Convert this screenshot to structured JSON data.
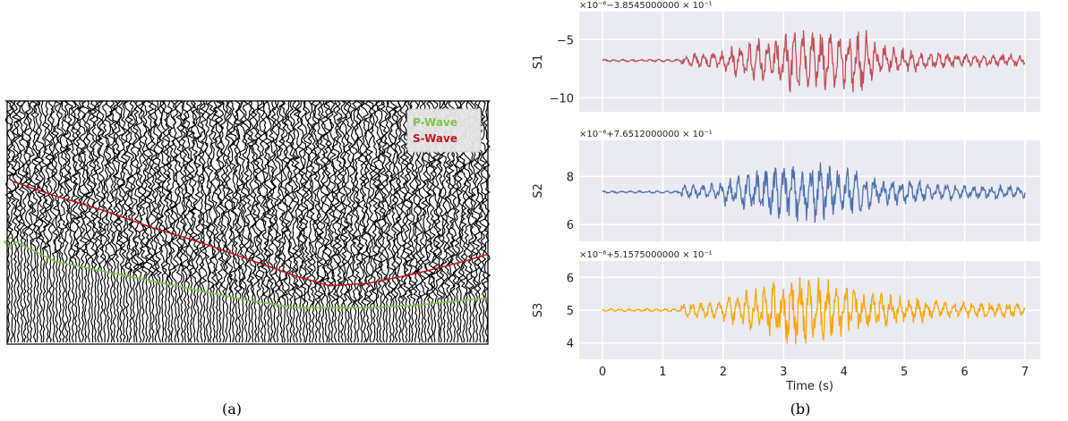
{
  "figure": {
    "caption_a": "(a)",
    "caption_b": "(b)"
  },
  "chart_data": [
    {
      "type": "seismic-gather",
      "title": "",
      "legend": {
        "position": "top-right",
        "entries": [
          "P-Wave",
          "S-Wave"
        ]
      },
      "series": [
        {
          "name": "P-Wave",
          "color": "#7cc44a",
          "trace_pos": [
            0,
            0.02,
            0.1,
            0.2,
            0.3,
            0.4,
            0.5,
            0.6,
            0.67,
            0.75,
            0.85,
            0.95,
            1.0
          ],
          "time_pos": [
            0.6,
            0.58,
            0.66,
            0.7,
            0.74,
            0.78,
            0.82,
            0.85,
            0.85,
            0.85,
            0.84,
            0.82,
            0.81
          ]
        },
        {
          "name": "S-Wave",
          "color": "#c0141c",
          "trace_pos": [
            0.01,
            0.1,
            0.2,
            0.3,
            0.4,
            0.5,
            0.6,
            0.67,
            0.75,
            0.85,
            0.95,
            1.0
          ],
          "time_pos": [
            0.33,
            0.39,
            0.45,
            0.52,
            0.58,
            0.65,
            0.72,
            0.76,
            0.75,
            0.71,
            0.66,
            0.63
          ]
        }
      ]
    },
    {
      "type": "line",
      "xlabel": "Time (s)",
      "xlim": [
        0,
        7
      ],
      "xticks": [
        "0",
        "1",
        "2",
        "3",
        "4",
        "5",
        "6",
        "7"
      ],
      "grid": true,
      "series": [
        {
          "name": "",
          "ylabel": "S1",
          "color": "#c44e52",
          "offset_label": "×10⁻⁶−3.8545000000 × 10⁻¹",
          "ylim": [
            -11.2,
            -2.6
          ],
          "yticks": [
            -5,
            -10
          ],
          "ytick_labels": [
            "−5",
            "−10"
          ],
          "baseline": -6.8,
          "amp": 2.8
        },
        {
          "name": "",
          "ylabel": "S2",
          "color": "#4c72b0",
          "offset_label": "×10⁻⁶+7.6512000000 × 10⁻¹",
          "ylim": [
            5.3,
            9.5
          ],
          "yticks": [
            6,
            8
          ],
          "ytick_labels": [
            "6",
            "8"
          ],
          "baseline": 7.35,
          "amp": 1.3
        },
        {
          "name": "",
          "ylabel": "S3",
          "color": "#ffa500",
          "offset_label": "×10⁻⁶+5.1575000000 × 10⁻¹",
          "ylim": [
            3.5,
            6.5
          ],
          "yticks": [
            4,
            5,
            6
          ],
          "ytick_labels": [
            "4",
            "5",
            "6"
          ],
          "baseline": 5.0,
          "amp": 1.1
        }
      ]
    }
  ]
}
